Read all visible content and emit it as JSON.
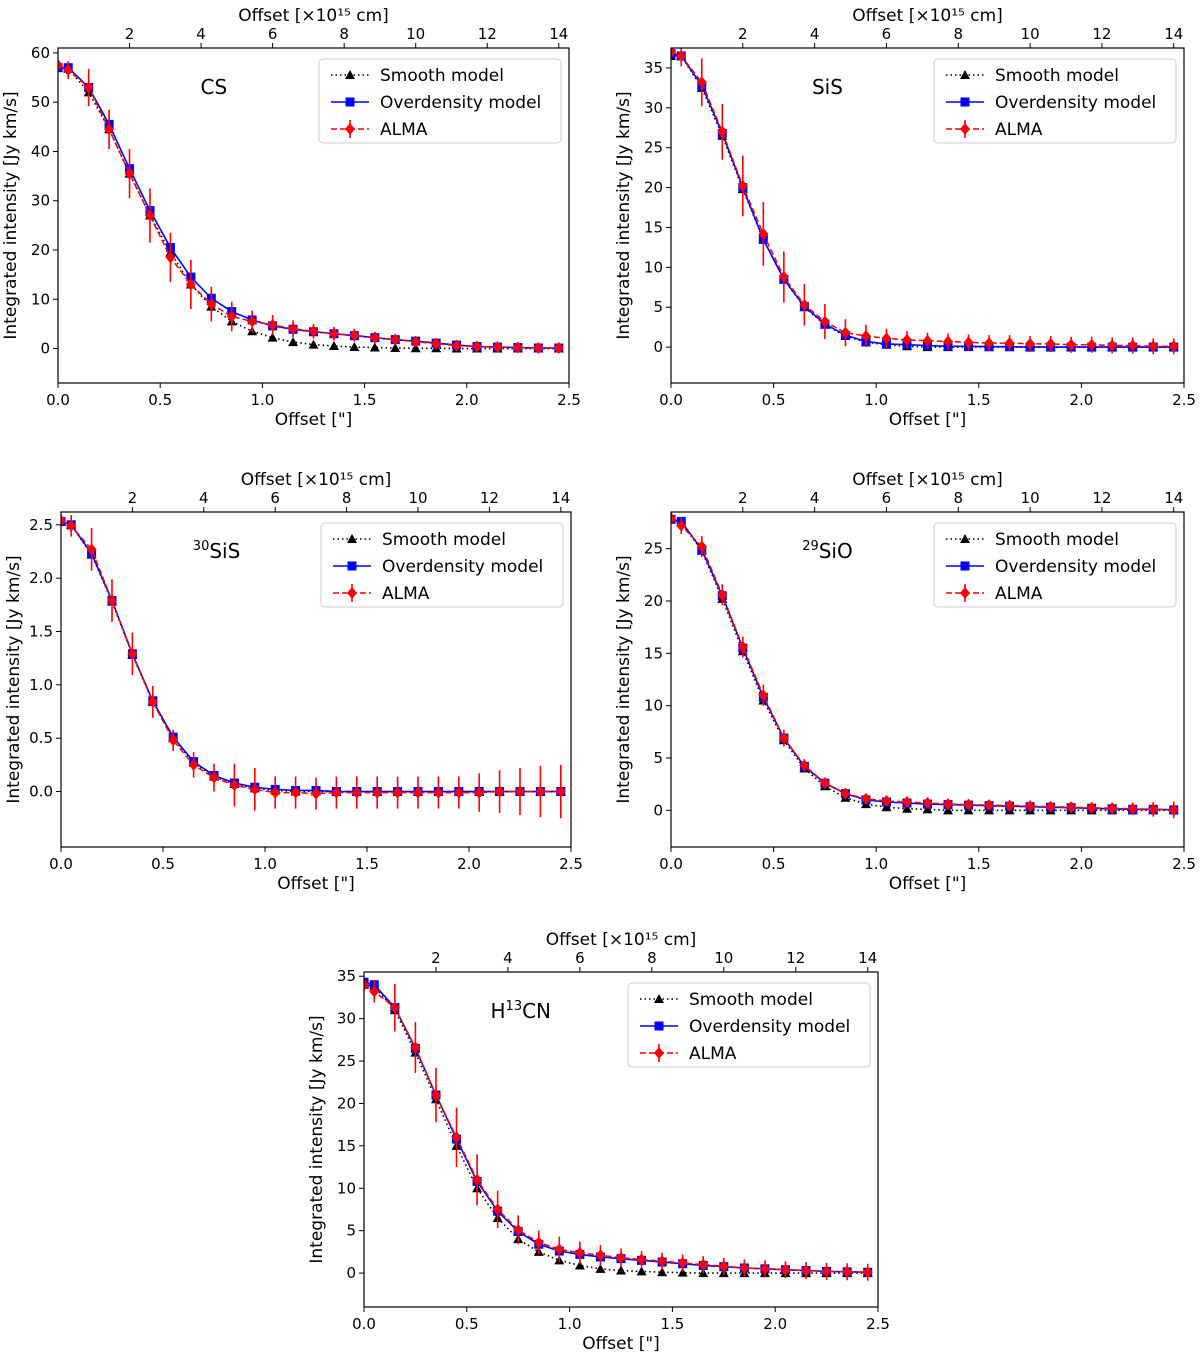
{
  "figure": {
    "xlabel": "Offset [\"]",
    "ylabel": "Integrated intensity [Jy km/s]",
    "top_xlabel": "Offset [×10¹⁵ cm]",
    "legend": [
      "Smooth model",
      "Overdensity model",
      "ALMA"
    ],
    "colors": {
      "smooth": "#000000",
      "overdensity": "#0000ff",
      "alma": "#ff0000"
    }
  },
  "chart_data": [
    {
      "type": "line",
      "title": "CS",
      "xlabel": "Offset [\"]",
      "ylabel": "Integrated intensity [Jy km/s]",
      "top_xlabel": "Offset [×10¹⁵ cm]",
      "xlim": [
        0,
        2.5
      ],
      "ylim": [
        -7,
        61
      ],
      "yticks": [
        0,
        10,
        20,
        30,
        40,
        50,
        60
      ],
      "ytick_labels": [
        "0",
        "10",
        "20",
        "30",
        "40",
        "50",
        "60"
      ],
      "xticks": [
        0,
        0.5,
        1.0,
        1.5,
        2.0,
        2.5
      ],
      "xtick_labels": [
        "0.0",
        "0.5",
        "1.0",
        "1.5",
        "2.0",
        "2.5"
      ],
      "top_ticks": [
        2,
        4,
        6,
        8,
        10,
        12,
        14
      ],
      "top_tick_labels": [
        "2",
        "4",
        "6",
        "8",
        "10",
        "12",
        "14"
      ],
      "legend_position": "top-right",
      "x": [
        0.0,
        0.05,
        0.15,
        0.25,
        0.35,
        0.45,
        0.55,
        0.65,
        0.75,
        0.85,
        0.95,
        1.05,
        1.15,
        1.25,
        1.35,
        1.45,
        1.55,
        1.65,
        1.75,
        1.85,
        1.95,
        2.05,
        2.15,
        2.25,
        2.35,
        2.45
      ],
      "series": [
        {
          "name": "Smooth model",
          "values": [
            57,
            56.8,
            52,
            44.5,
            35.5,
            27,
            19.5,
            13,
            8.5,
            5.5,
            3.5,
            2.2,
            1.3,
            0.8,
            0.5,
            0.3,
            0.2,
            0.1,
            0.05,
            0.05,
            0,
            0,
            0,
            0,
            0,
            0
          ]
        },
        {
          "name": "Overdensity model",
          "values": [
            57,
            57,
            53,
            45.5,
            36.5,
            28,
            20.5,
            14.5,
            10.2,
            7.5,
            5.8,
            4.6,
            3.9,
            3.4,
            3,
            2.6,
            2.2,
            1.8,
            1.5,
            1.1,
            0.7,
            0.4,
            0.3,
            0.2,
            0.1,
            0.1
          ]
        },
        {
          "name": "ALMA",
          "values": [
            57.5,
            56.5,
            53,
            44.5,
            35.5,
            27,
            18.5,
            13,
            9,
            6.5,
            5.5,
            4.8,
            4,
            3.5,
            3,
            2.7,
            2.2,
            1.8,
            1.4,
            1,
            0.6,
            0.4,
            0.3,
            0.2,
            0.1,
            0.1
          ],
          "errors": [
            1.2,
            1.8,
            3.8,
            4,
            5,
            5.5,
            5,
            5,
            3.5,
            3,
            2.2,
            2,
            1.7,
            1.5,
            1.4,
            1.3,
            1.2,
            1.1,
            1,
            0.9,
            0.9,
            0.9,
            0.9,
            0.9,
            0.9,
            0.9
          ]
        }
      ]
    },
    {
      "type": "line",
      "title": "SiS",
      "xlabel": "Offset [\"]",
      "ylabel": "Integrated intensity [Jy km/s]",
      "top_xlabel": "Offset [×10¹⁵ cm]",
      "xlim": [
        0,
        2.5
      ],
      "ylim": [
        -4.5,
        37.5
      ],
      "yticks": [
        0,
        5,
        10,
        15,
        20,
        25,
        30,
        35
      ],
      "ytick_labels": [
        "0",
        "5",
        "10",
        "15",
        "20",
        "25",
        "30",
        "35"
      ],
      "xticks": [
        0,
        0.5,
        1.0,
        1.5,
        2.0,
        2.5
      ],
      "xtick_labels": [
        "0.0",
        "0.5",
        "1.0",
        "1.5",
        "2.0",
        "2.5"
      ],
      "top_ticks": [
        2,
        4,
        6,
        8,
        10,
        12,
        14
      ],
      "top_tick_labels": [
        "2",
        "4",
        "6",
        "8",
        "10",
        "12",
        "14"
      ],
      "legend_position": "top-right",
      "x": [
        0.0,
        0.05,
        0.15,
        0.25,
        0.35,
        0.45,
        0.55,
        0.65,
        0.75,
        0.85,
        0.95,
        1.05,
        1.15,
        1.25,
        1.35,
        1.45,
        1.55,
        1.65,
        1.75,
        1.85,
        1.95,
        2.05,
        2.15,
        2.25,
        2.35,
        2.45
      ],
      "series": [
        {
          "name": "Smooth model",
          "values": [
            36.5,
            36.5,
            32.5,
            26.5,
            19.8,
            13.5,
            8.5,
            5,
            2.8,
            1.4,
            0.6,
            0.3,
            0.1,
            0,
            0,
            0,
            0,
            0,
            0,
            0,
            0,
            0,
            0,
            0,
            0,
            0
          ]
        },
        {
          "name": "Overdensity model",
          "values": [
            36.8,
            36.5,
            32.8,
            26.8,
            20,
            13.5,
            8.5,
            5.1,
            2.9,
            1.5,
            0.7,
            0.4,
            0.3,
            0.2,
            0.1,
            0.1,
            0.05,
            0.05,
            0,
            0,
            0,
            0,
            0,
            0,
            0,
            0
          ]
        },
        {
          "name": "ALMA",
          "values": [
            37,
            36.5,
            33.2,
            27,
            20.2,
            14.2,
            8.8,
            5.3,
            3.2,
            1.8,
            1.4,
            1.1,
            0.9,
            0.8,
            0.7,
            0.6,
            0.5,
            0.5,
            0.4,
            0.4,
            0.3,
            0.3,
            0.2,
            0.2,
            0.1,
            0.1
          ],
          "errors": [
            1,
            1.3,
            3,
            3.5,
            3.8,
            4,
            3.2,
            2.6,
            2.2,
            1.7,
            1.4,
            1.2,
            1.1,
            1,
            1,
            1,
            1,
            1,
            1,
            1,
            1,
            1,
            1,
            1,
            1,
            1
          ]
        }
      ]
    },
    {
      "type": "line",
      "title": "30SiS",
      "title_super": "30",
      "title_main": "SiS",
      "xlabel": "Offset [\"]",
      "ylabel": "Integrated intensity [Jy km/s]",
      "top_xlabel": "Offset [×10¹⁵ cm]",
      "xlim": [
        0,
        2.5
      ],
      "ylim": [
        -0.52,
        2.62
      ],
      "yticks": [
        0,
        0.5,
        1.0,
        1.5,
        2.0,
        2.5
      ],
      "ytick_labels": [
        "0.0",
        "0.5",
        "1.0",
        "1.5",
        "2.0",
        "2.5"
      ],
      "xticks": [
        0,
        0.5,
        1.0,
        1.5,
        2.0,
        2.5
      ],
      "xtick_labels": [
        "0.0",
        "0.5",
        "1.0",
        "1.5",
        "2.0",
        "2.5"
      ],
      "top_ticks": [
        2,
        4,
        6,
        8,
        10,
        12,
        14
      ],
      "top_tick_labels": [
        "2",
        "4",
        "6",
        "8",
        "10",
        "12",
        "14"
      ],
      "legend_position": "top-right",
      "x": [
        0.0,
        0.05,
        0.15,
        0.25,
        0.35,
        0.45,
        0.55,
        0.65,
        0.75,
        0.85,
        0.95,
        1.05,
        1.15,
        1.25,
        1.35,
        1.45,
        1.55,
        1.65,
        1.75,
        1.85,
        1.95,
        2.05,
        2.15,
        2.25,
        2.35,
        2.45
      ],
      "series": [
        {
          "name": "Smooth model",
          "values": [
            2.53,
            2.5,
            2.22,
            1.78,
            1.28,
            0.84,
            0.5,
            0.27,
            0.14,
            0.07,
            0.03,
            0.01,
            0,
            0,
            0,
            0,
            0,
            0,
            0,
            0,
            0,
            0,
            0,
            0,
            0,
            0
          ]
        },
        {
          "name": "Overdensity model",
          "values": [
            2.53,
            2.5,
            2.23,
            1.79,
            1.29,
            0.85,
            0.51,
            0.28,
            0.15,
            0.08,
            0.04,
            0.02,
            0.01,
            0.01,
            0,
            0,
            0,
            0,
            0,
            0,
            0,
            0,
            0,
            0,
            0,
            0
          ]
        },
        {
          "name": "ALMA",
          "values": [
            2.54,
            2.49,
            2.27,
            1.79,
            1.29,
            0.84,
            0.48,
            0.25,
            0.13,
            0.06,
            0.02,
            -0.01,
            -0.01,
            -0.02,
            -0.01,
            -0.01,
            -0.01,
            -0.01,
            -0.01,
            -0.01,
            -0.01,
            -0.01,
            0,
            0,
            0,
            0
          ],
          "errors": [
            0.06,
            0.1,
            0.2,
            0.2,
            0.2,
            0.15,
            0.1,
            0.12,
            0.13,
            0.2,
            0.2,
            0.15,
            0.15,
            0.15,
            0.15,
            0.15,
            0.15,
            0.15,
            0.15,
            0.15,
            0.15,
            0.18,
            0.2,
            0.22,
            0.24,
            0.25
          ]
        }
      ]
    },
    {
      "type": "line",
      "title": "29SiO",
      "title_super": "29",
      "title_main": "SiO",
      "xlabel": "Offset [\"]",
      "ylabel": "Integrated intensity [Jy km/s]",
      "top_xlabel": "Offset [×10¹⁵ cm]",
      "xlim": [
        0,
        2.5
      ],
      "ylim": [
        -3.5,
        28.5
      ],
      "yticks": [
        0,
        5,
        10,
        15,
        20,
        25
      ],
      "ytick_labels": [
        "0",
        "5",
        "10",
        "15",
        "20",
        "25"
      ],
      "xticks": [
        0,
        0.5,
        1.0,
        1.5,
        2.0,
        2.5
      ],
      "xtick_labels": [
        "0.0",
        "0.5",
        "1.0",
        "1.5",
        "2.0",
        "2.5"
      ],
      "top_ticks": [
        2,
        4,
        6,
        8,
        10,
        12,
        14
      ],
      "top_tick_labels": [
        "2",
        "4",
        "6",
        "8",
        "10",
        "12",
        "14"
      ],
      "legend_position": "top-right",
      "x": [
        0.0,
        0.05,
        0.15,
        0.25,
        0.35,
        0.45,
        0.55,
        0.65,
        0.75,
        0.85,
        0.95,
        1.05,
        1.15,
        1.25,
        1.35,
        1.45,
        1.55,
        1.65,
        1.75,
        1.85,
        1.95,
        2.05,
        2.15,
        2.25,
        2.35,
        2.45
      ],
      "series": [
        {
          "name": "Smooth model",
          "values": [
            27.8,
            27.5,
            24.8,
            20.2,
            15.2,
            10.5,
            6.7,
            4,
            2.3,
            1.2,
            0.6,
            0.3,
            0.15,
            0.1,
            0,
            0,
            0,
            0,
            0,
            0,
            0,
            0,
            0,
            0,
            0,
            0
          ]
        },
        {
          "name": "Overdensity model",
          "values": [
            27.8,
            27.6,
            24.9,
            20.5,
            15.5,
            10.8,
            6.9,
            4.2,
            2.6,
            1.6,
            1,
            0.8,
            0.7,
            0.6,
            0.55,
            0.5,
            0.45,
            0.4,
            0.35,
            0.3,
            0.25,
            0.2,
            0.15,
            0.1,
            0.1,
            0.05
          ]
        },
        {
          "name": "ALMA",
          "values": [
            27.9,
            27.2,
            25.2,
            20.6,
            15.6,
            11,
            6.9,
            4.3,
            2.6,
            1.6,
            1.1,
            0.9,
            0.8,
            0.7,
            0.6,
            0.55,
            0.5,
            0.45,
            0.4,
            0.35,
            0.3,
            0.25,
            0.2,
            0.15,
            0.1,
            0.05
          ],
          "errors": [
            0.3,
            0.8,
            1,
            1,
            1,
            1,
            0.8,
            0.6,
            0.5,
            0.5,
            0.5,
            0.5,
            0.5,
            0.5,
            0.5,
            0.5,
            0.5,
            0.5,
            0.5,
            0.5,
            0.5,
            0.5,
            0.5,
            0.6,
            0.7,
            0.8
          ]
        }
      ]
    },
    {
      "type": "line",
      "title": "H13CN",
      "title_pre": "H",
      "title_super": "13",
      "title_main": "CN",
      "xlabel": "Offset [\"]",
      "ylabel": "Integrated intensity [Jy km/s]",
      "top_xlabel": "Offset [×10¹⁵ cm]",
      "xlim": [
        0,
        2.5
      ],
      "ylim": [
        -4,
        35.5
      ],
      "yticks": [
        0,
        5,
        10,
        15,
        20,
        25,
        30,
        35
      ],
      "ytick_labels": [
        "0",
        "5",
        "10",
        "15",
        "20",
        "25",
        "30",
        "35"
      ],
      "xticks": [
        0,
        0.5,
        1.0,
        1.5,
        2.0,
        2.5
      ],
      "xtick_labels": [
        "0.0",
        "0.5",
        "1.0",
        "1.5",
        "2.0",
        "2.5"
      ],
      "top_ticks": [
        2,
        4,
        6,
        8,
        10,
        12,
        14
      ],
      "top_tick_labels": [
        "2",
        "4",
        "6",
        "8",
        "10",
        "12",
        "14"
      ],
      "legend_position": "top-right",
      "x": [
        0.0,
        0.05,
        0.15,
        0.25,
        0.35,
        0.45,
        0.55,
        0.65,
        0.75,
        0.85,
        0.95,
        1.05,
        1.15,
        1.25,
        1.35,
        1.45,
        1.55,
        1.65,
        1.75,
        1.85,
        1.95,
        2.05,
        2.15,
        2.25,
        2.35,
        2.45
      ],
      "series": [
        {
          "name": "Smooth model",
          "values": [
            34,
            33.8,
            31,
            26,
            20.5,
            15,
            10,
            6.5,
            4,
            2.5,
            1.5,
            0.9,
            0.5,
            0.3,
            0.2,
            0.1,
            0.05,
            0,
            0,
            0,
            0,
            0,
            0,
            0,
            0,
            0
          ]
        },
        {
          "name": "Overdensity model",
          "values": [
            34.3,
            34,
            31.3,
            26.5,
            21,
            15.8,
            10.8,
            7.3,
            4.9,
            3.4,
            2.6,
            2.2,
            1.9,
            1.7,
            1.5,
            1.3,
            1.1,
            0.9,
            0.75,
            0.6,
            0.5,
            0.4,
            0.3,
            0.2,
            0.15,
            0.1
          ]
        },
        {
          "name": "ALMA",
          "values": [
            34,
            33.2,
            31.3,
            26.6,
            21,
            16,
            11,
            7.5,
            5.1,
            3.6,
            2.8,
            2.4,
            2.1,
            1.8,
            1.6,
            1.4,
            1.2,
            1,
            0.8,
            0.6,
            0.5,
            0.4,
            0.3,
            0.2,
            0.15,
            0.1
          ],
          "errors": [
            0.8,
            1.3,
            2.8,
            3,
            3.2,
            3.5,
            3,
            2.2,
            1.7,
            1.4,
            1.5,
            1.3,
            1.2,
            1.1,
            1,
            1,
            1,
            1,
            1,
            1,
            1,
            1,
            1,
            1,
            1,
            1
          ]
        }
      ]
    }
  ]
}
